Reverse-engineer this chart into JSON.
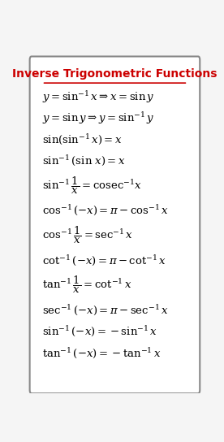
{
  "title": "Inverse Trigonometric Functions",
  "title_color": "#cc0000",
  "bg_color": "#f5f5f5",
  "border_color": "#888888",
  "text_color": "#000000",
  "formulas": [
    "$y = \\sin^{-1} x \\Rightarrow x = \\sin y$",
    "$y = \\sin y \\Rightarrow y = \\sin^{-1} y$",
    "$\\sin(\\sin^{-1}x) = x$",
    "$\\sin^{-1}(\\sin\\, x) = x$",
    "$\\sin^{-1}\\dfrac{1}{x} = \\mathrm{cosec}^{-1} x$",
    "$\\cos^{-1}(-x) = \\pi - \\cos^{-1} x$",
    "$\\cos^{-1}\\dfrac{1}{x} = \\sec^{-1} x$",
    "$\\cot^{-1}(-x) = \\pi - \\cot^{-1} x$",
    "$\\tan^{-1}\\dfrac{1}{x} = \\cot^{-1} x$",
    "$\\sec^{-1}(-x) = \\pi - \\sec^{-1} x$",
    "$\\sin^{-1}(-x) = -\\sin^{-1}x$",
    "$\\tan^{-1}(-x) = -\\tan^{-1}x$"
  ],
  "figsize": [
    2.76,
    5.44
  ],
  "dpi": 100
}
